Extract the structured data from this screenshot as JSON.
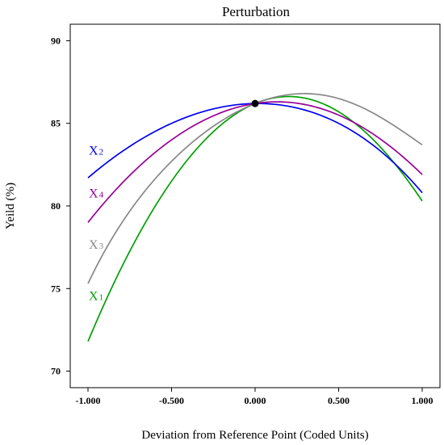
{
  "chart_data": {
    "type": "line",
    "title": "Perturbation",
    "xlabel": "Deviation from Reference Point (Coded Units)",
    "ylabel": "Yeild (%)",
    "xlim": [
      -1.0,
      1.0
    ],
    "ylim": [
      69,
      91
    ],
    "xticks": [
      -1.0,
      -0.5,
      0.0,
      0.5,
      1.0
    ],
    "xtick_labels": [
      "-1.000",
      "-0.500",
      "0.000",
      "0.500",
      "1.000"
    ],
    "yticks": [
      70,
      75,
      80,
      85,
      90
    ],
    "ytick_labels": [
      "70",
      "75",
      "80",
      "85",
      "90"
    ],
    "grid": false,
    "reference_point": {
      "x": 0.0,
      "y": 86.2
    },
    "series": [
      {
        "name": "X",
        "subscript": "1",
        "color": "#00a000",
        "x": [
          -1.0,
          -0.5,
          0.0,
          0.25,
          0.5,
          1.0
        ],
        "y": [
          71.8,
          81.5,
          86.2,
          86.6,
          85.7,
          80.3
        ]
      },
      {
        "name": "X",
        "subscript": "2",
        "color": "#0000ee",
        "x": [
          -1.0,
          -0.5,
          0.0,
          0.5,
          1.0
        ],
        "y": [
          81.7,
          85.0,
          86.2,
          85.0,
          80.8
        ]
      },
      {
        "name": "X",
        "subscript": "3",
        "color": "#888888",
        "x": [
          -1.0,
          -0.5,
          0.0,
          0.3,
          0.5,
          1.0
        ],
        "y": [
          75.3,
          82.7,
          86.2,
          86.8,
          86.5,
          83.7
        ]
      },
      {
        "name": "X",
        "subscript": "4",
        "color": "#990099",
        "x": [
          -1.0,
          -0.5,
          0.0,
          0.15,
          0.5,
          1.0
        ],
        "y": [
          79.0,
          84.0,
          86.2,
          86.3,
          85.5,
          81.9
        ]
      }
    ]
  }
}
